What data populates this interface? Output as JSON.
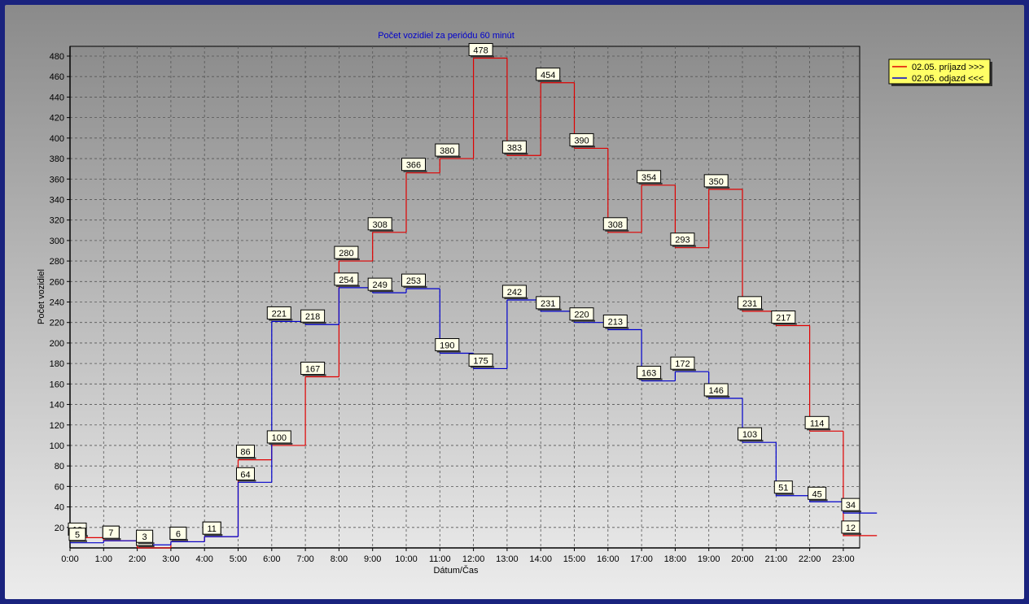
{
  "chart_data": {
    "type": "line",
    "step": true,
    "title": "Počet vozidiel za periódu 60 minút",
    "xlabel": "Dátum/Čas",
    "ylabel": "Počet vozidiel",
    "categories": [
      "0:00",
      "1:00",
      "2:00",
      "3:00",
      "4:00",
      "5:00",
      "6:00",
      "7:00",
      "8:00",
      "9:00",
      "10:00",
      "11:00",
      "12:00",
      "13:00",
      "14:00",
      "15:00",
      "16:00",
      "17:00",
      "18:00",
      "19:00",
      "20:00",
      "21:00",
      "22:00",
      "23:00"
    ],
    "yticks": [
      20,
      40,
      60,
      80,
      100,
      120,
      140,
      160,
      180,
      200,
      220,
      240,
      260,
      280,
      300,
      320,
      340,
      360,
      380,
      400,
      420,
      440,
      460,
      480
    ],
    "ylim": [
      0,
      480
    ],
    "grid": true,
    "legend_position": "top-right",
    "series": [
      {
        "name": "02.05.  príjazd >>>",
        "color": "#e00000",
        "values": [
          10,
          7,
          0,
          6,
          11,
          86,
          100,
          167,
          280,
          308,
          366,
          380,
          478,
          383,
          454,
          390,
          308,
          354,
          293,
          350,
          231,
          217,
          114,
          12
        ]
      },
      {
        "name": "02.05.  odjazd <<<",
        "color": "#0000cc",
        "values": [
          5,
          7,
          3,
          6,
          11,
          64,
          221,
          218,
          254,
          249,
          253,
          190,
          175,
          242,
          231,
          220,
          213,
          163,
          172,
          146,
          103,
          51,
          45,
          34
        ]
      }
    ]
  }
}
